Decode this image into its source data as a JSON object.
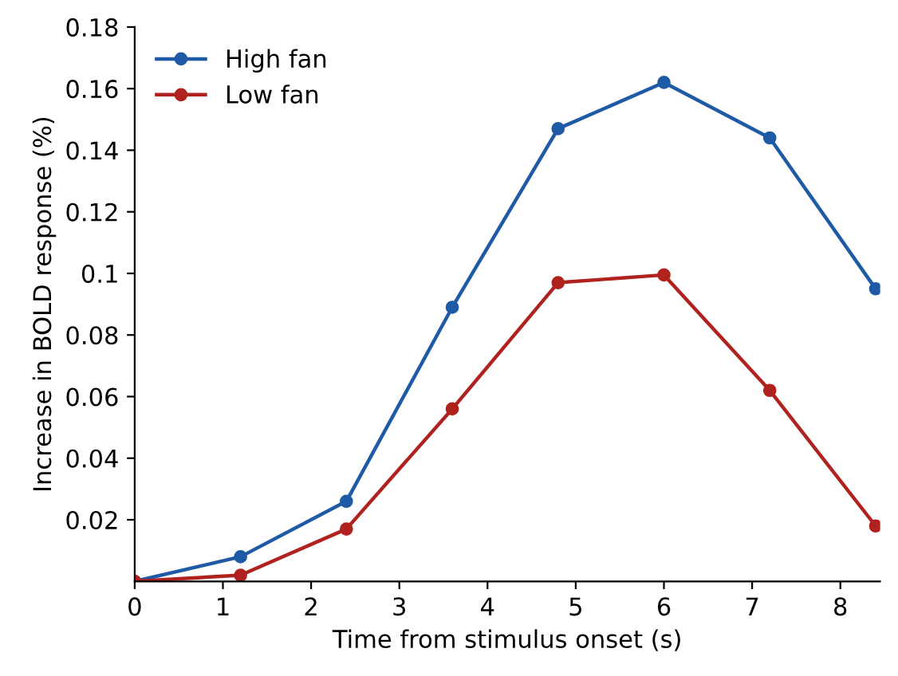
{
  "chart_data": {
    "type": "line",
    "xlabel": "Time from stimulus onset (s)",
    "ylabel": "Increase in BOLD response (%)",
    "xlim": [
      0,
      8.45
    ],
    "ylim": [
      0,
      0.18
    ],
    "xticks": [
      0,
      1,
      2,
      3,
      4,
      5,
      6,
      7,
      8
    ],
    "yticks": [
      0.02,
      0.04,
      0.06,
      0.08,
      {
        "value": 0.1,
        "label": "0.1"
      },
      0.12,
      0.14,
      0.16,
      0.18
    ],
    "x": [
      0,
      1.2,
      2.4,
      3.6,
      4.8,
      6,
      7.2,
      8.4
    ],
    "series": [
      {
        "name": "High fan",
        "color": "#1f5aa6",
        "values": [
          0,
          0.008,
          0.026,
          0.089,
          0.147,
          0.162,
          0.144,
          0.095
        ]
      },
      {
        "name": "Low fan",
        "color": "#b0221e",
        "values": [
          0,
          0.002,
          0.017,
          0.056,
          0.097,
          0.0995,
          0.062,
          0.018
        ]
      }
    ],
    "marker": "circle",
    "legend": "top left",
    "grid": false
  }
}
